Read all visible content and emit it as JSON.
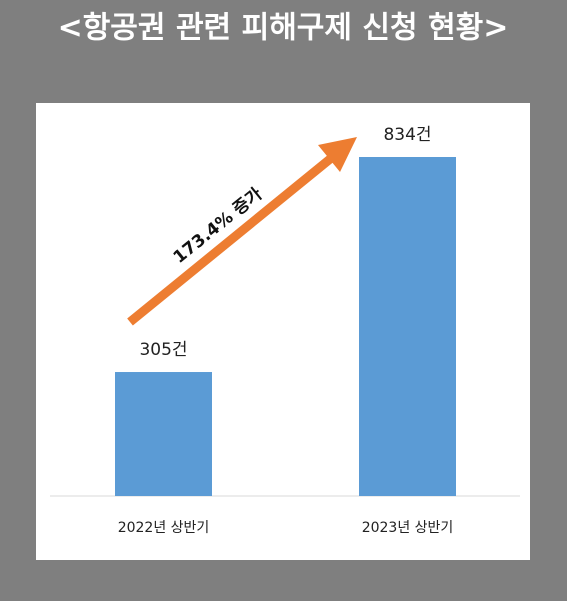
{
  "chart_data": {
    "type": "bar",
    "title": "<항공권 관련 피해구제 신청 현황>",
    "categories": [
      "2022년 상반기",
      "2023년 상반기"
    ],
    "values": [
      305,
      834
    ],
    "value_labels": [
      "305건",
      "834건"
    ],
    "color": "#5b9bd5",
    "annotation": "173.4% 증가",
    "annotation_color": "#ed7d31"
  }
}
